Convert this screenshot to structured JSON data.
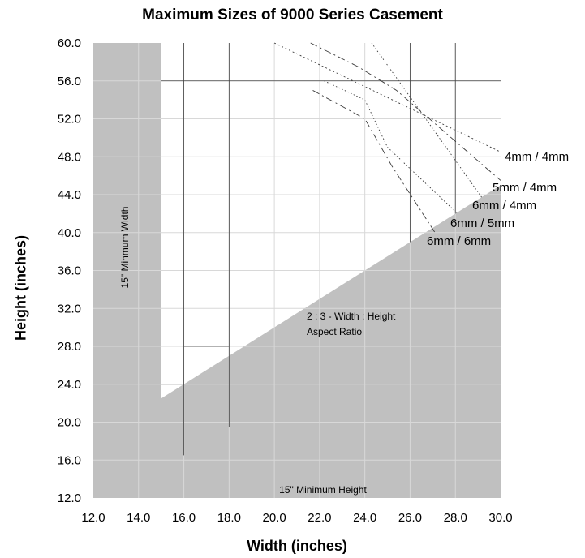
{
  "chart_data": {
    "type": "line",
    "title": "Maximum Sizes of 9000 Series Casement",
    "xlabel": "Width (inches)",
    "ylabel": "Height (inches)",
    "xlim": [
      12,
      30
    ],
    "ylim": [
      12,
      60
    ],
    "xticks": [
      "12.0",
      "14.0",
      "16.0",
      "18.0",
      "20.0",
      "22.0",
      "24.0",
      "26.0",
      "28.0",
      "30.0"
    ],
    "yticks": [
      "12.0",
      "16.0",
      "20.0",
      "24.0",
      "28.0",
      "32.0",
      "36.0",
      "40.0",
      "44.0",
      "48.0",
      "52.0",
      "56.0",
      "60.0"
    ],
    "series": [
      {
        "name": "4mm / 4mm",
        "x": [
          20.0,
          30.0
        ],
        "y": [
          60.0,
          48.5
        ]
      },
      {
        "name": "5mm / 4mm",
        "x": [
          21.6,
          23.7,
          25.4,
          30.0
        ],
        "y": [
          60.0,
          57.5,
          55.0,
          45.5
        ]
      },
      {
        "name": "6mm / 4mm",
        "x": [
          24.3,
          29.2
        ],
        "y": [
          60.0,
          43.6
        ]
      },
      {
        "name": "6mm / 5mm",
        "x": [
          22.2,
          24.0,
          25.0,
          28.1
        ],
        "y": [
          56.0,
          54.0,
          49.0,
          42.0
        ]
      },
      {
        "name": "6mm / 6mm",
        "x": [
          21.7,
          24.0,
          25.2,
          27.1
        ],
        "y": [
          55.0,
          52.0,
          47.0,
          40.0
        ]
      }
    ],
    "shaded_regions": [
      {
        "name": "15\" Minimum Width",
        "x": [
          12.0,
          15.0
        ],
        "y": [
          12.0,
          60.0
        ]
      },
      {
        "name": "15\" Minimum Height",
        "x": [
          12.0,
          30.0
        ],
        "y": [
          12.0,
          15.0
        ]
      },
      {
        "name": "2 : 3 - Width : Height Aspect Ratio",
        "boundary_x": [
          15.0,
          30.0
        ],
        "boundary_y": [
          22.5,
          45.0
        ]
      }
    ],
    "annotations": [
      "15\" Minmum Width",
      "15\" Minimum Height",
      "2 : 3 - Width : Height",
      "Aspect Ratio"
    ],
    "grid": true,
    "legend": "none",
    "colors": {
      "shade": "#c0c0c0",
      "grid_dark": "#404040",
      "grid_light": "#d8d8d8",
      "curves": "#3a3a3a"
    }
  }
}
